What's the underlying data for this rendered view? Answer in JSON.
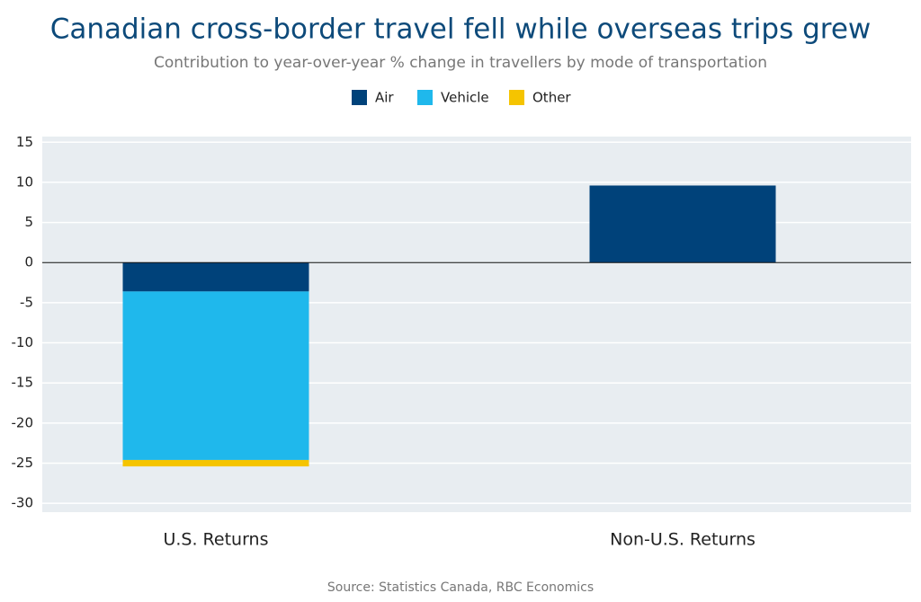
{
  "chart_data": {
    "type": "stacked_bar",
    "title": "Canadian cross-border travel fell while overseas trips grew",
    "subtitle": "Contribution to year-over-year % change in travellers by mode of transportation",
    "source": "Source: Statistics Canada, RBC Economics",
    "categories": [
      "U.S. Returns",
      "Non-U.S. Returns"
    ],
    "series": [
      {
        "name": "Air",
        "color": "#00427a",
        "values": [
          -3.6,
          9.6
        ]
      },
      {
        "name": "Vehicle",
        "color": "#1fb8ec",
        "values": [
          -21,
          0
        ]
      },
      {
        "name": "Other",
        "color": "#f5c400",
        "values": [
          -0.8,
          0
        ]
      }
    ],
    "ylim": [
      -31.1,
      15.7
    ],
    "yticks": [
      15,
      10,
      5,
      0,
      -5,
      -10,
      -15,
      -20,
      -25,
      -30
    ],
    "grid": true,
    "legend": "top"
  }
}
